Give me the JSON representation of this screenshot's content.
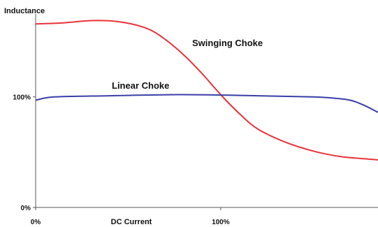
{
  "chart_data": {
    "type": "line",
    "ylabel": "Inductance",
    "xlabel": "DC Current",
    "x_ticks": [
      {
        "value": 0,
        "label": "0%"
      },
      {
        "value": 100,
        "label": "100%"
      }
    ],
    "y_ticks": [
      {
        "value": 0,
        "label": "0%"
      },
      {
        "value": 100,
        "label": "100%"
      }
    ],
    "xlim": [
      0,
      185
    ],
    "ylim": [
      0,
      175
    ],
    "grid": false,
    "series": [
      {
        "name": "Swinging Choke",
        "color": "#e8333a",
        "x": [
          0,
          15,
          30,
          45,
          60,
          70,
          80,
          90,
          100,
          110,
          120,
          135,
          150,
          165,
          185
        ],
        "y": [
          166,
          167,
          169,
          168,
          162,
          152,
          138,
          121,
          102,
          85,
          71,
          59,
          51,
          46,
          43
        ]
      },
      {
        "name": "Linear Choke",
        "color": "#3a3ea8",
        "x": [
          0,
          10,
          40,
          80,
          120,
          150,
          160,
          170,
          178,
          185
        ],
        "y": [
          97,
          100,
          101,
          102,
          101,
          100,
          99,
          97,
          92,
          86
        ]
      }
    ]
  }
}
